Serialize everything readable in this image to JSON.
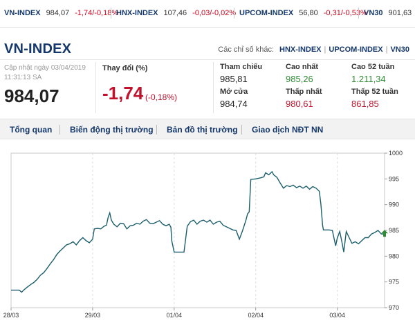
{
  "ticker": [
    {
      "name": "VN-INDEX",
      "value": "984,07",
      "change": "-1,74/-0,18%"
    },
    {
      "name": "HNX-INDEX",
      "value": "107,46",
      "change": "-0,03/-0,02%"
    },
    {
      "name": "UPCOM-INDEX",
      "value": "56,80",
      "change": "-0,31/-0,53%"
    },
    {
      "name": "VN30",
      "value": "901,63",
      "change": ""
    }
  ],
  "header": {
    "title": "VN-INDEX",
    "other_label": "Các chỉ số khác:",
    "links": [
      "HNX-INDEX",
      "UPCOM-INDEX",
      "VN30"
    ]
  },
  "summary": {
    "updated_label": "Cập nhật ngày 03/04/2019",
    "updated_time": "11:31:13 SA",
    "price": "984,07",
    "change_label": "Thay đổi (%)",
    "change": "-1,74",
    "change_pct": "(-0,18%)",
    "stats": {
      "ref_label": "Tham chiếu",
      "ref": "985,81",
      "high_label": "Cao nhất",
      "high": "985,26",
      "high52_label": "Cao 52 tuần",
      "high52": "1.211,34",
      "open_label": "Mở cửa",
      "open": "984,74",
      "low_label": "Thấp nhất",
      "low": "980,61",
      "low52_label": "Thấp 52 tuần",
      "low52": "861,85"
    }
  },
  "tabs": [
    "Tổng quan",
    "Biến động thị trường",
    "Bản đồ thị trường",
    "Giao dịch NĐT NN"
  ],
  "colors": {
    "accent": "#14386b",
    "down": "#c0122c",
    "up": "#2e8b34",
    "line": "#1b5e6b"
  },
  "chart_data": {
    "type": "line",
    "x_ticks": [
      "28/03",
      "29/03",
      "01/04",
      "02/04",
      "03/04"
    ],
    "y_ticks": [
      970,
      975,
      980,
      985,
      990,
      995,
      1000
    ],
    "ylim": [
      970,
      1000
    ],
    "marker": "up-arrow at last point",
    "series": [
      {
        "values": [
          [
            0.0,
            973.4
          ],
          [
            0.1,
            973.4
          ],
          [
            0.13,
            973.0
          ],
          [
            0.16,
            973.5
          ],
          [
            0.2,
            974.0
          ],
          [
            0.24,
            974.5
          ],
          [
            0.28,
            974.9
          ],
          [
            0.32,
            975.5
          ],
          [
            0.36,
            976.3
          ],
          [
            0.4,
            976.8
          ],
          [
            0.44,
            977.6
          ],
          [
            0.48,
            978.5
          ],
          [
            0.52,
            979.3
          ],
          [
            0.56,
            980.3
          ],
          [
            0.6,
            981.0
          ],
          [
            0.64,
            981.6
          ],
          [
            0.68,
            982.2
          ],
          [
            0.72,
            982.4
          ],
          [
            0.76,
            982.8
          ],
          [
            0.8,
            982.2
          ],
          [
            0.84,
            983.0
          ],
          [
            0.88,
            983.6
          ],
          [
            0.92,
            983.0
          ],
          [
            0.96,
            982.6
          ],
          [
            1.0,
            983.3
          ],
          [
            1.02,
            985.3
          ],
          [
            1.06,
            985.4
          ],
          [
            1.1,
            985.3
          ],
          [
            1.14,
            985.8
          ],
          [
            1.17,
            986.0
          ],
          [
            1.19,
            987.5
          ],
          [
            1.21,
            988.4
          ],
          [
            1.23,
            987.0
          ],
          [
            1.26,
            986.2
          ],
          [
            1.3,
            985.7
          ],
          [
            1.34,
            986.4
          ],
          [
            1.38,
            986.3
          ],
          [
            1.42,
            985.3
          ],
          [
            1.46,
            985.9
          ],
          [
            1.5,
            986.0
          ],
          [
            1.54,
            986.4
          ],
          [
            1.58,
            986.2
          ],
          [
            1.62,
            986.8
          ],
          [
            1.66,
            987.1
          ],
          [
            1.7,
            986.4
          ],
          [
            1.74,
            986.3
          ],
          [
            1.78,
            986.6
          ],
          [
            1.82,
            986.9
          ],
          [
            1.86,
            986.2
          ],
          [
            1.9,
            985.9
          ],
          [
            1.94,
            986.2
          ],
          [
            1.96,
            985.6
          ],
          [
            1.97,
            983.0
          ],
          [
            2.0,
            980.8
          ],
          [
            2.08,
            980.8
          ],
          [
            2.12,
            980.8
          ],
          [
            2.16,
            985.8
          ],
          [
            2.2,
            986.7
          ],
          [
            2.24,
            987.0
          ],
          [
            2.28,
            986.2
          ],
          [
            2.32,
            986.8
          ],
          [
            2.36,
            987.0
          ],
          [
            2.4,
            986.6
          ],
          [
            2.44,
            987.0
          ],
          [
            2.48,
            986.2
          ],
          [
            2.52,
            986.6
          ],
          [
            2.56,
            986.8
          ],
          [
            2.6,
            986.0
          ],
          [
            2.64,
            985.7
          ],
          [
            2.68,
            985.4
          ],
          [
            2.72,
            985.1
          ],
          [
            2.76,
            985.0
          ],
          [
            2.8,
            983.3
          ],
          [
            2.84,
            985.0
          ],
          [
            2.88,
            987.0
          ],
          [
            2.9,
            988.2
          ],
          [
            2.92,
            988.6
          ],
          [
            2.94,
            994.9
          ],
          [
            3.0,
            995.0
          ],
          [
            3.06,
            995.2
          ],
          [
            3.1,
            995.4
          ],
          [
            3.12,
            996.2
          ],
          [
            3.16,
            995.8
          ],
          [
            3.2,
            996.4
          ],
          [
            3.22,
            995.8
          ],
          [
            3.26,
            995.3
          ],
          [
            3.3,
            994.2
          ],
          [
            3.34,
            993.2
          ],
          [
            3.38,
            993.7
          ],
          [
            3.42,
            993.5
          ],
          [
            3.46,
            993.8
          ],
          [
            3.5,
            993.3
          ],
          [
            3.54,
            993.6
          ],
          [
            3.58,
            993.2
          ],
          [
            3.62,
            993.6
          ],
          [
            3.66,
            993.0
          ],
          [
            3.7,
            993.5
          ],
          [
            3.74,
            993.2
          ],
          [
            3.78,
            992.6
          ],
          [
            3.8,
            990.0
          ],
          [
            3.82,
            986.0
          ],
          [
            3.83,
            985.1
          ],
          [
            3.9,
            985.1
          ],
          [
            3.94,
            985.0
          ],
          [
            3.96,
            983.5
          ],
          [
            3.98,
            982.0
          ],
          [
            4.0,
            983.5
          ],
          [
            4.03,
            984.8
          ],
          [
            4.06,
            982.5
          ],
          [
            4.08,
            980.8
          ],
          [
            4.11,
            984.8
          ],
          [
            4.14,
            983.8
          ],
          [
            4.18,
            982.5
          ],
          [
            4.22,
            982.8
          ],
          [
            4.26,
            982.4
          ],
          [
            4.3,
            983.0
          ],
          [
            4.34,
            983.6
          ],
          [
            4.38,
            983.6
          ],
          [
            4.42,
            984.3
          ],
          [
            4.46,
            984.6
          ],
          [
            4.5,
            985.0
          ],
          [
            4.54,
            984.3
          ],
          [
            4.58,
            984.3
          ]
        ]
      }
    ]
  }
}
